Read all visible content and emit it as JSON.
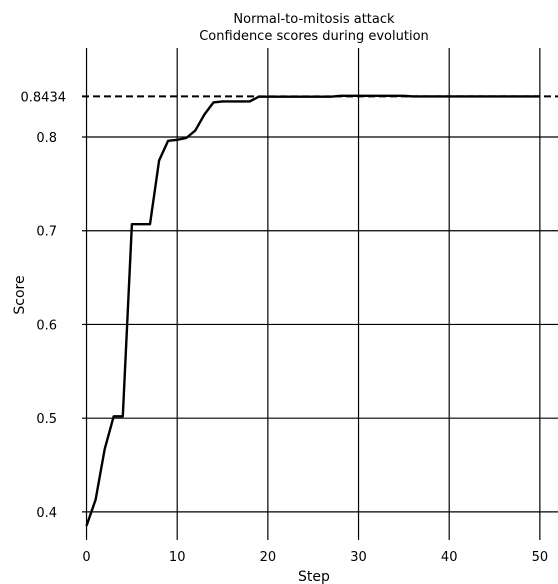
{
  "chart_data": {
    "type": "line",
    "title_line1": "Normal-to-mitosis attack",
    "title_line2": "Confidence scores during evolution",
    "xlabel": "Step",
    "ylabel": "Score",
    "xlim": [
      -0.5,
      52
    ],
    "ylim": [
      0.37,
      0.895
    ],
    "x_ticks": [
      0,
      10,
      20,
      30,
      40,
      50
    ],
    "y_ticks": [
      0.4,
      0.5,
      0.6,
      0.7,
      0.8
    ],
    "y_tick_labels": [
      "0.4",
      "0.5",
      "0.6",
      "0.7",
      "0.8"
    ],
    "reference_line": {
      "value": 0.8434,
      "label": "0.8434",
      "style": "dashed"
    },
    "grid": true,
    "series": [
      {
        "x": [
          0,
          1,
          2,
          3,
          4,
          5,
          6,
          7,
          8,
          9,
          10,
          11,
          12,
          13,
          14,
          15,
          16,
          17,
          18,
          19,
          20,
          21,
          22,
          23,
          24,
          25,
          26,
          27,
          28,
          29,
          30,
          31,
          32,
          33,
          34,
          35,
          36,
          37,
          38,
          39,
          40,
          41,
          42,
          43,
          44,
          45,
          46,
          47,
          48,
          49,
          50
        ],
        "values": [
          0.385,
          0.413,
          0.467,
          0.502,
          0.502,
          0.707,
          0.707,
          0.707,
          0.775,
          0.796,
          0.797,
          0.799,
          0.807,
          0.824,
          0.837,
          0.838,
          0.838,
          0.838,
          0.838,
          0.843,
          0.843,
          0.843,
          0.843,
          0.843,
          0.843,
          0.843,
          0.843,
          0.843,
          0.844,
          0.844,
          0.844,
          0.844,
          0.844,
          0.844,
          0.844,
          0.844,
          0.8434,
          0.8434,
          0.8434,
          0.8434,
          0.8434,
          0.8434,
          0.8434,
          0.8434,
          0.8434,
          0.8434,
          0.8434,
          0.8434,
          0.8434,
          0.8434,
          0.8434
        ]
      }
    ]
  }
}
